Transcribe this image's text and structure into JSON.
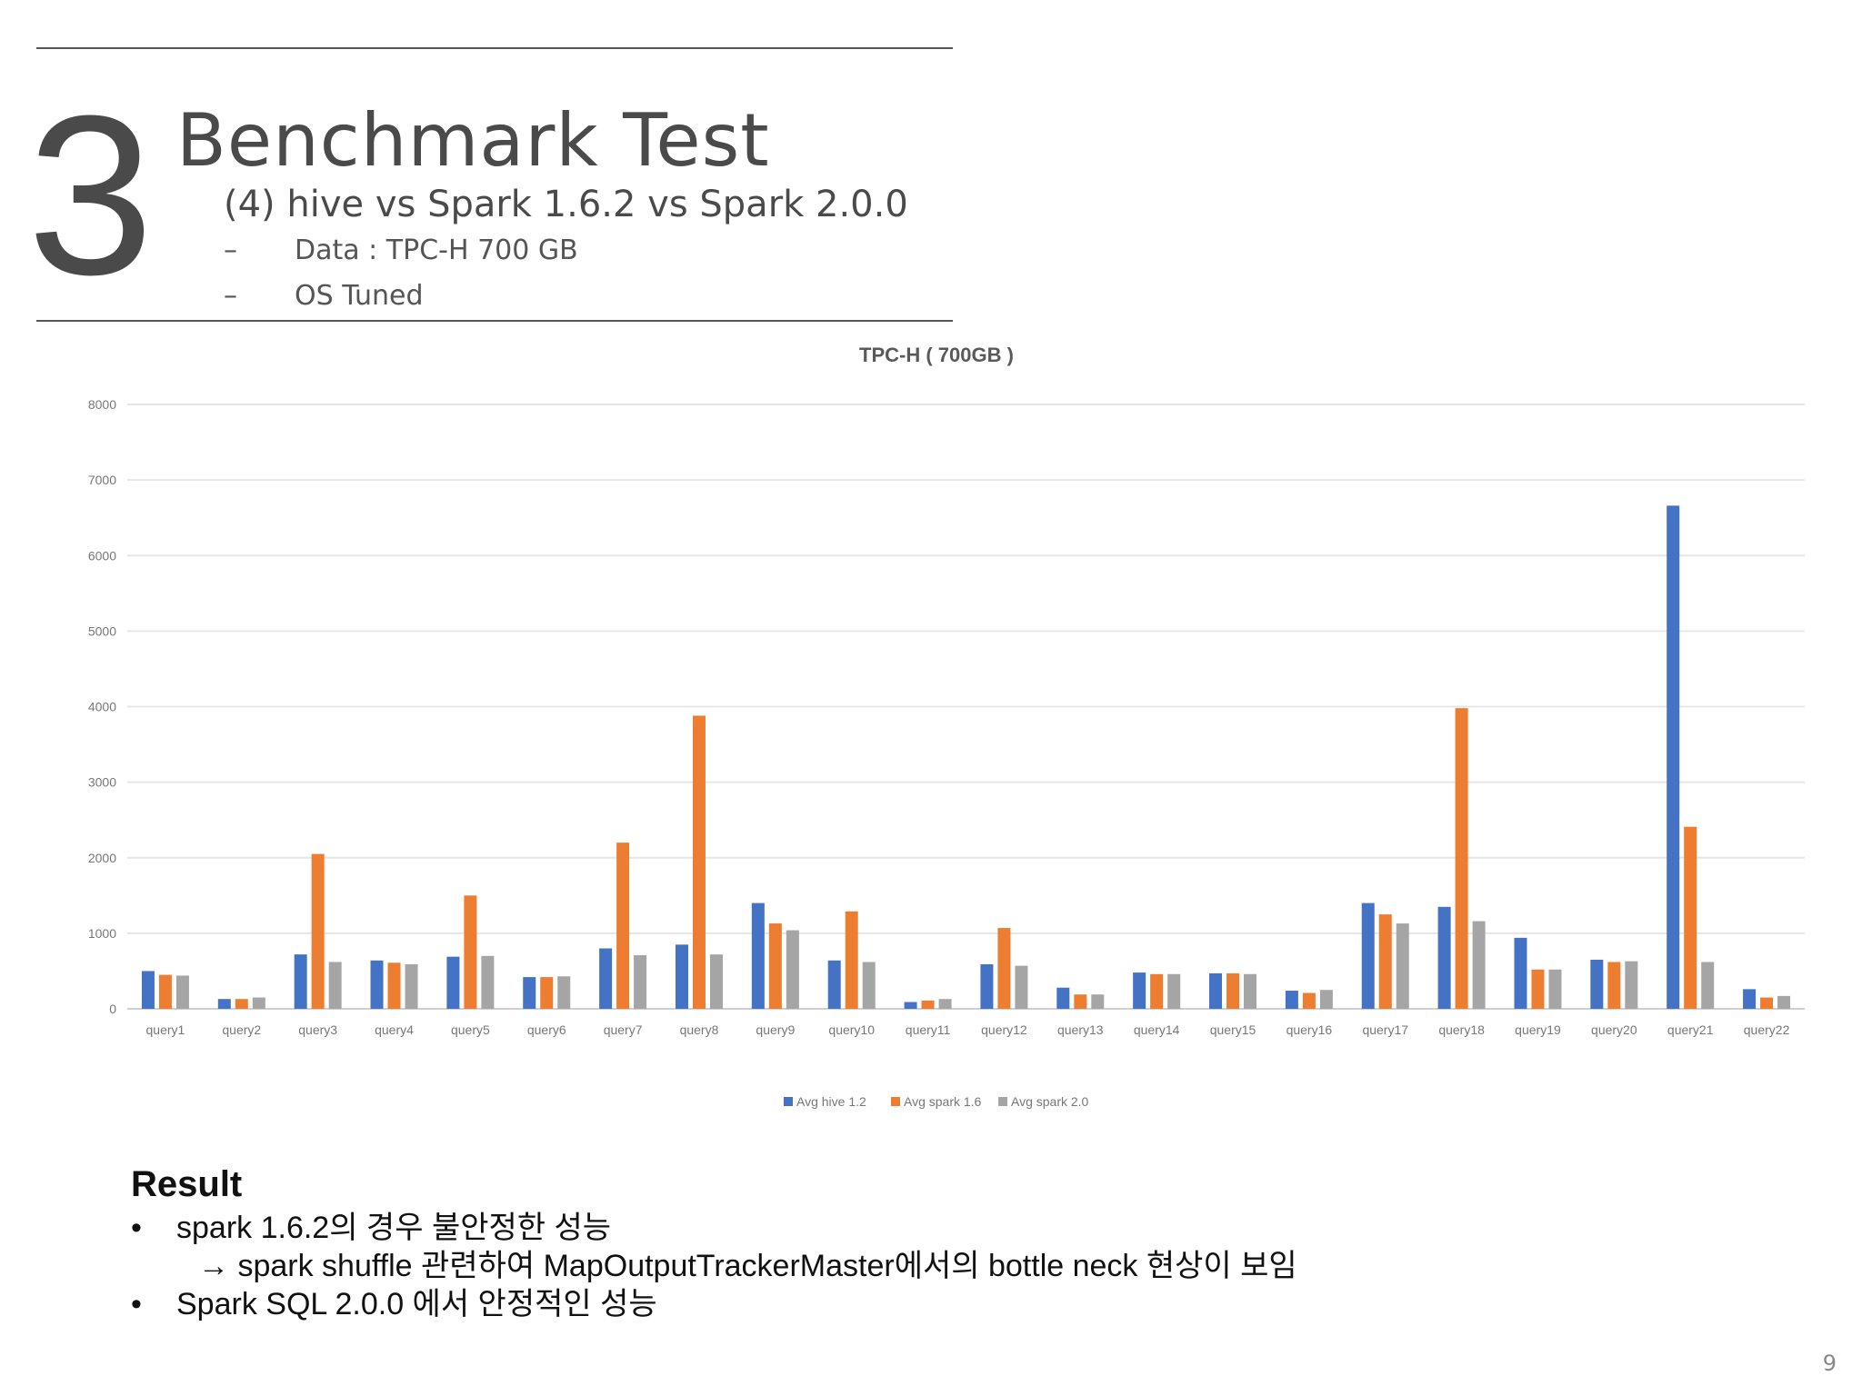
{
  "slide": {
    "section_number": "3",
    "title": "Benchmark Test",
    "subtitle": "(4) hive vs Spark 1.6.2 vs Spark 2.0.0",
    "bullets": [
      {
        "dash": "–",
        "text": "Data : TPC-H  700 GB"
      },
      {
        "dash": "–",
        "text": "OS Tuned"
      }
    ],
    "result": {
      "heading": "Result",
      "items": [
        {
          "marker": "•",
          "text": "spark 1.6.2의 경우 불안정한 성능"
        },
        {
          "marker": "",
          "text": "→ spark shuffle 관련하여 MapOutputTrackerMaster에서의 bottle neck 현상이 보임"
        },
        {
          "marker": "•",
          "text": "Spark SQL 2.0.0 에서 안정적인 성능"
        }
      ]
    },
    "page_number": "9"
  },
  "chart_data": {
    "type": "bar",
    "title": "TPC-H ( 700GB )",
    "xlabel": "",
    "ylabel": "",
    "ylim": [
      0,
      8000
    ],
    "yticks": [
      0,
      1000,
      2000,
      3000,
      4000,
      5000,
      6000,
      7000,
      8000
    ],
    "grid": true,
    "legend_position": "bottom",
    "categories": [
      "query1",
      "query2",
      "query3",
      "query4",
      "query5",
      "query6",
      "query7",
      "query8",
      "query9",
      "query10",
      "query11",
      "query12",
      "query13",
      "query14",
      "query15",
      "query16",
      "query17",
      "query18",
      "query19",
      "query20",
      "query21",
      "query22"
    ],
    "series": [
      {
        "name": "Avg hive 1.2",
        "color": "#4472C4",
        "values": [
          500,
          130,
          720,
          640,
          690,
          420,
          800,
          850,
          1400,
          640,
          90,
          590,
          280,
          480,
          470,
          240,
          1400,
          1350,
          940,
          650,
          6660,
          260
        ]
      },
      {
        "name": "Avg spark 1.6",
        "color": "#ED7D31",
        "values": [
          450,
          130,
          2050,
          610,
          1500,
          420,
          2200,
          3880,
          1130,
          1290,
          110,
          1070,
          190,
          460,
          470,
          210,
          1250,
          3980,
          520,
          620,
          2410,
          150
        ]
      },
      {
        "name": "Avg spark 2.0",
        "color": "#A5A5A5",
        "values": [
          440,
          150,
          620,
          590,
          700,
          430,
          710,
          720,
          1040,
          620,
          130,
          570,
          190,
          460,
          460,
          250,
          1130,
          1160,
          520,
          630,
          620,
          170
        ]
      }
    ]
  }
}
